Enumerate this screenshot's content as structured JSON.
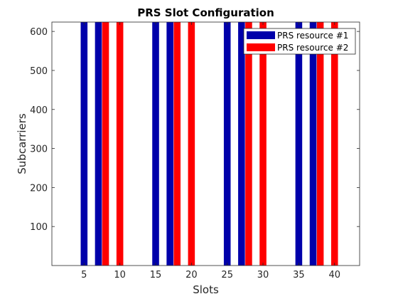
{
  "chart_data": {
    "type": "bar",
    "title": "PRS Slot Configuration",
    "xlabel": "Slots",
    "ylabel": "Subcarriers",
    "xlim": [
      0.5,
      43.5
    ],
    "ylim": [
      0,
      624
    ],
    "xticks": [
      5,
      10,
      15,
      20,
      25,
      30,
      35,
      40
    ],
    "yticks": [
      100,
      200,
      300,
      400,
      500,
      600
    ],
    "bar_height": 624,
    "legend_position": "top-right",
    "series": [
      {
        "name": "PRS resource #1",
        "color": "#0000aa",
        "slots": [
          5,
          7,
          15,
          17,
          25,
          27,
          35,
          37
        ]
      },
      {
        "name": "PRS resource #2",
        "color": "#ff0000",
        "slots": [
          8,
          10,
          18,
          20,
          28,
          30,
          38,
          40
        ]
      }
    ]
  }
}
